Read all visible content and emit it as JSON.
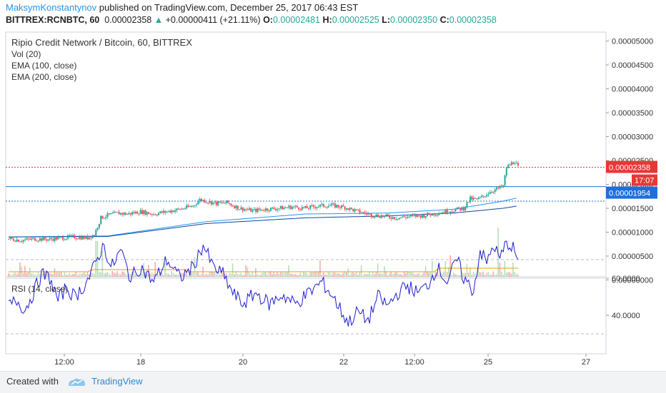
{
  "header": {
    "author": "MaksymKonstantynov",
    "published_text": "published on TradingView.com, December 25, 2017 06:43 EST",
    "symbol": "BITTREX:RCNBTC, 60",
    "last": "0.00002358",
    "change": "+0.00000411 (+21.11%)",
    "o_label": "O:",
    "o_val": "0.00002481",
    "h_label": "H:",
    "h_val": "0.00002525",
    "l_label": "L:",
    "l_val": "0.00002350",
    "c_label": "C:",
    "c_val": "0.00002358"
  },
  "legend": {
    "title": "Ripio Credit Network / Bitcoin, 60, BITTREX",
    "vol": "Vol (20)",
    "ema100": "EMA (100, close)",
    "ema200": "EMA (200, close)",
    "rsi": "RSI (14, close)"
  },
  "price_axis": [
    "0.00005000",
    "0.00004500",
    "0.00004000",
    "0.00003500",
    "0.00003000",
    "0.00002500",
    "0.00002000",
    "0.00001500",
    "0.00001000",
    "0.00000500",
    "0.00000000"
  ],
  "price_badges": {
    "last": "0.00002358",
    "countdown": "17:07",
    "line": "0.00001954"
  },
  "rsi_axis": [
    "60.0000",
    "40.0000"
  ],
  "time_axis": [
    "12:00",
    "18",
    "20",
    "22",
    "12:00",
    "25",
    "27"
  ],
  "footer": {
    "created": "Created with",
    "brand": "TradingView"
  },
  "colors": {
    "up": "#26a69a",
    "down": "#ef5350",
    "ema100": "#2196f3",
    "ema200": "#0d47a1",
    "rsi": "#1e1ecf",
    "vol_ma": "#ff9800",
    "accent": "#2196f3"
  },
  "chart_data": {
    "type": "candlestick",
    "title": "Ripio Credit Network / Bitcoin, 60, BITTREX",
    "x_ticks": [
      "12:00",
      "18",
      "20",
      "22",
      "12:00",
      "25",
      "27"
    ],
    "price_range": [
      0,
      5e-05
    ],
    "price_path": [
      [
        0,
        8.6e-06
      ],
      [
        8,
        8.3e-06
      ],
      [
        16,
        8.6e-06
      ],
      [
        24,
        8.5e-06
      ],
      [
        32,
        8.8e-06
      ],
      [
        40,
        9e-06
      ],
      [
        48,
        8.8e-06
      ],
      [
        52,
        9.5e-06
      ],
      [
        56,
        1.3e-05
      ],
      [
        60,
        1.35e-05
      ],
      [
        66,
        1.4e-05
      ],
      [
        72,
        1.38e-05
      ],
      [
        80,
        1.43e-05
      ],
      [
        88,
        1.38e-05
      ],
      [
        96,
        1.43e-05
      ],
      [
        104,
        1.48e-05
      ],
      [
        112,
        1.55e-05
      ],
      [
        116,
        1.68e-05
      ],
      [
        120,
        1.65e-05
      ],
      [
        126,
        1.6e-05
      ],
      [
        132,
        1.62e-05
      ],
      [
        140,
        1.5e-05
      ],
      [
        148,
        1.45e-05
      ],
      [
        156,
        1.48e-05
      ],
      [
        164,
        1.5e-05
      ],
      [
        172,
        1.53e-05
      ],
      [
        180,
        1.5e-05
      ],
      [
        188,
        1.55e-05
      ],
      [
        196,
        1.56e-05
      ],
      [
        204,
        1.52e-05
      ],
      [
        212,
        1.43e-05
      ],
      [
        220,
        1.36e-05
      ],
      [
        228,
        1.33e-05
      ],
      [
        236,
        1.3e-05
      ],
      [
        244,
        1.33e-05
      ],
      [
        252,
        1.35e-05
      ],
      [
        260,
        1.4e-05
      ],
      [
        268,
        1.45e-05
      ],
      [
        276,
        1.5e-05
      ],
      [
        280,
        1.7e-05
      ],
      [
        284,
        1.68e-05
      ],
      [
        288,
        1.75e-05
      ],
      [
        292,
        1.85e-05
      ],
      [
        296,
        1.9e-05
      ],
      [
        300,
        1.96e-05
      ],
      [
        302,
        2.35e-05
      ],
      [
        305,
        2.44e-05
      ],
      [
        307,
        2.481e-05
      ],
      [
        309,
        2.358e-05
      ]
    ],
    "ema100_path": [
      [
        0,
        9e-06
      ],
      [
        60,
        9.2e-06
      ],
      [
        120,
        1.22e-05
      ],
      [
        180,
        1.38e-05
      ],
      [
        230,
        1.4e-05
      ],
      [
        270,
        1.48e-05
      ],
      [
        300,
        1.65e-05
      ],
      [
        309,
        1.72e-05
      ]
    ],
    "ema200_path": [
      [
        0,
        9e-06
      ],
      [
        60,
        9.1e-06
      ],
      [
        120,
        1.18e-05
      ],
      [
        180,
        1.3e-05
      ],
      [
        230,
        1.34e-05
      ],
      [
        270,
        1.4e-05
      ],
      [
        300,
        1.5e-05
      ],
      [
        309,
        1.55e-05
      ]
    ],
    "last_price": 2.358e-05,
    "level_lines": [
      1.954e-05,
      1.65e-05
    ],
    "rsi_range": [
      20,
      80
    ],
    "rsi_levels": [
      70,
      30
    ],
    "rsi_sample": [
      [
        0,
        45
      ],
      [
        5,
        48
      ],
      [
        10,
        43
      ],
      [
        15,
        52
      ],
      [
        20,
        62
      ],
      [
        25,
        60
      ],
      [
        30,
        48
      ],
      [
        35,
        55
      ],
      [
        40,
        50
      ],
      [
        45,
        55
      ],
      [
        50,
        62
      ],
      [
        55,
        73
      ],
      [
        58,
        78
      ],
      [
        62,
        65
      ],
      [
        68,
        75
      ],
      [
        74,
        60
      ],
      [
        80,
        66
      ],
      [
        88,
        58
      ],
      [
        96,
        70
      ],
      [
        104,
        60
      ],
      [
        112,
        66
      ],
      [
        118,
        78
      ],
      [
        124,
        66
      ],
      [
        130,
        62
      ],
      [
        136,
        52
      ],
      [
        142,
        46
      ],
      [
        150,
        52
      ],
      [
        158,
        46
      ],
      [
        166,
        51
      ],
      [
        174,
        46
      ],
      [
        182,
        52
      ],
      [
        190,
        58
      ],
      [
        196,
        51
      ],
      [
        202,
        42
      ],
      [
        206,
        36
      ],
      [
        212,
        42
      ],
      [
        218,
        37
      ],
      [
        224,
        50
      ],
      [
        230,
        45
      ],
      [
        236,
        52
      ],
      [
        242,
        56
      ],
      [
        248,
        52
      ],
      [
        254,
        56
      ],
      [
        260,
        66
      ],
      [
        266,
        58
      ],
      [
        272,
        70
      ],
      [
        276,
        60
      ],
      [
        282,
        53
      ],
      [
        286,
        75
      ],
      [
        290,
        68
      ],
      [
        294,
        78
      ],
      [
        298,
        70
      ],
      [
        302,
        80
      ],
      [
        306,
        76
      ],
      [
        309,
        70
      ]
    ]
  }
}
